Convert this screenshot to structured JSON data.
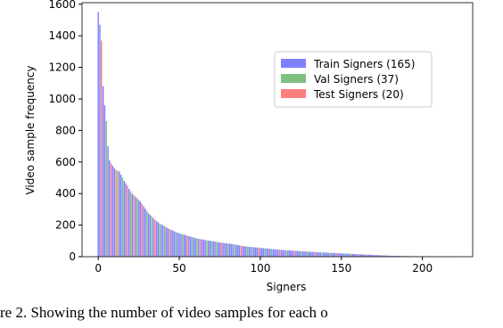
{
  "chart_data": {
    "type": "bar",
    "x_label": "Signers",
    "y_label": "Video sample frequency",
    "caption": "re 2. Showing the number of video samples for each o",
    "xlim": [
      -10,
      231
    ],
    "ylim": [
      0,
      1610
    ],
    "xticks": [
      0,
      50,
      100,
      150,
      200
    ],
    "yticks": [
      0,
      200,
      400,
      600,
      800,
      1000,
      1200,
      1400,
      1600
    ],
    "legend": "upper right",
    "series": [
      {
        "name": "Train Signers (165)",
        "color": "#0000ff",
        "x": [
          0,
          1,
          3,
          4,
          6,
          7,
          9,
          10,
          13,
          14,
          16,
          17,
          19,
          21,
          23,
          25,
          26,
          28,
          29,
          31,
          32,
          34,
          36,
          37,
          39,
          40,
          42,
          43,
          45,
          46,
          47,
          49,
          50,
          51,
          53,
          54,
          56,
          57,
          59,
          60,
          62,
          64,
          65,
          66,
          68,
          69,
          71,
          72,
          74,
          75,
          77,
          78,
          79,
          81,
          82,
          83,
          85,
          86,
          87,
          89,
          90,
          91,
          93,
          94,
          96,
          97,
          98,
          100,
          101,
          102,
          104,
          105,
          106,
          108,
          109,
          110,
          111,
          113,
          114,
          115,
          117,
          118,
          119,
          120,
          122,
          123,
          124,
          126,
          127,
          128,
          130,
          131,
          132,
          133,
          135,
          136,
          137,
          139,
          140,
          141,
          142,
          144,
          145,
          146,
          148,
          149,
          150,
          151,
          153,
          154,
          155,
          157,
          158,
          159,
          161,
          162,
          163,
          164,
          166,
          167,
          168,
          169,
          171,
          172,
          173,
          174,
          176,
          177,
          178,
          179,
          181,
          182,
          183,
          184,
          186,
          187,
          188,
          189,
          191,
          192,
          193,
          194,
          196,
          197,
          198,
          199,
          201,
          202,
          203,
          204,
          205,
          206,
          207,
          209,
          210,
          211,
          212,
          213,
          214,
          216,
          217,
          218,
          219,
          220,
          221
        ],
        "values": [
          1550,
          1470,
          1080,
          960,
          700,
          610,
          575,
          560,
          540,
          520,
          480,
          465,
          430,
          400,
          380,
          360,
          350,
          320,
          305,
          275,
          265,
          245,
          225,
          218,
          204,
          198,
          186,
          180,
          170,
          165,
          160,
          152,
          148,
          145,
          139,
          136,
          130,
          127,
          121,
          118,
          114,
          110,
          108,
          106,
          102,
          101,
          98,
          96,
          92,
          90,
          88,
          86,
          85,
          82,
          81,
          79,
          76,
          74,
          72,
          68,
          66,
          65,
          63,
          62,
          60,
          59,
          58,
          56,
          55,
          54,
          52,
          51,
          50,
          48,
          47,
          46,
          45,
          43,
          42,
          42,
          40,
          40,
          39,
          38,
          37,
          36,
          36,
          34,
          34,
          33,
          32,
          31,
          31,
          30,
          29,
          28,
          28,
          27,
          26,
          26,
          25,
          24,
          24,
          23,
          22,
          22,
          21,
          21,
          20,
          19,
          19,
          18,
          17,
          17,
          16,
          15,
          15,
          14,
          13,
          13,
          12,
          12,
          11,
          10,
          10,
          9,
          8,
          8,
          7,
          7,
          6,
          6,
          6,
          5,
          5,
          4,
          4,
          4,
          3,
          3,
          3,
          3,
          3,
          3,
          2,
          2,
          2,
          2,
          2,
          2,
          2,
          2,
          2,
          1,
          1,
          1,
          1,
          1,
          1,
          1,
          1,
          1,
          1,
          1,
          1
        ]
      },
      {
        "name": "Val Signers (37)",
        "color": "#008000",
        "x": [
          5,
          12,
          15,
          20,
          24,
          30,
          33,
          38,
          41,
          48,
          52,
          58,
          61,
          67,
          70,
          73,
          80,
          84,
          92,
          95,
          103,
          107,
          116,
          125,
          129,
          138,
          143,
          152,
          156,
          165,
          170,
          180,
          185,
          195,
          200,
          208,
          215
        ],
        "values": [
          860,
          545,
          500,
          415,
          370,
          290,
          255,
          210,
          192,
          156,
          142,
          124,
          116,
          104,
          100,
          94,
          84,
          78,
          64,
          61,
          53,
          49,
          41,
          35,
          32,
          27,
          25,
          20,
          18,
          14,
          11,
          7,
          5,
          3,
          2,
          1,
          1
        ]
      },
      {
        "name": "Test Signers (20)",
        "color": "#ff0000",
        "x": [
          2,
          8,
          11,
          18,
          22,
          27,
          35,
          44,
          55,
          63,
          76,
          88,
          99,
          112,
          121,
          134,
          147,
          160,
          175,
          190
        ],
        "values": [
          1370,
          590,
          550,
          450,
          390,
          335,
          235,
          175,
          133,
          112,
          89,
          70,
          57,
          44,
          38,
          30,
          23,
          16,
          9,
          4
        ]
      }
    ]
  }
}
